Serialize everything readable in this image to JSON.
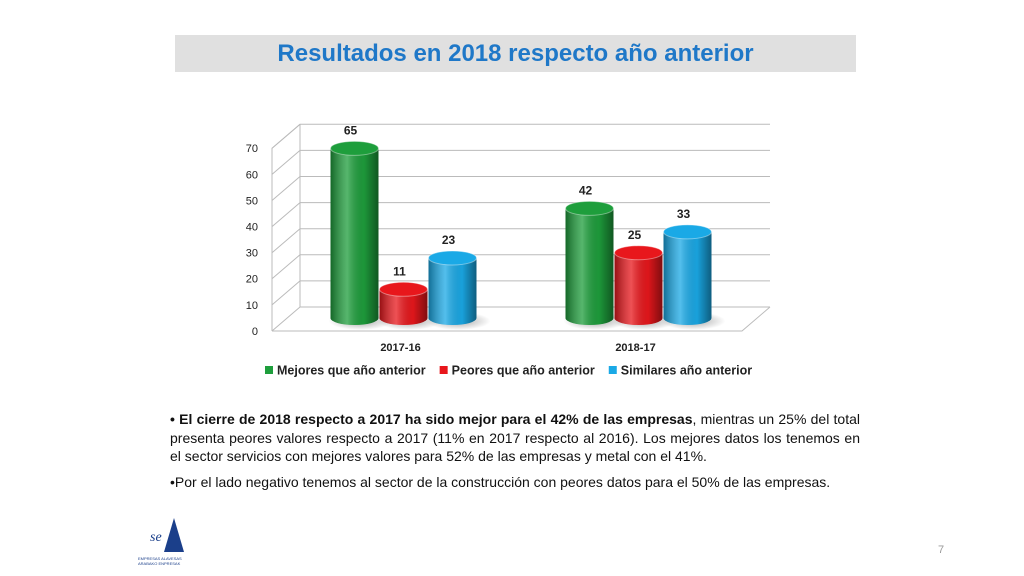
{
  "chart_data": {
    "type": "cylinder-bar",
    "title": "Resultados en 2018 respecto año anterior",
    "categories": [
      "2017-16",
      "2018-17"
    ],
    "series": [
      {
        "name": "Mejores que año anterior",
        "color": "#1e9e3c",
        "values": [
          65,
          42
        ]
      },
      {
        "name": "Peores que año anterior",
        "color": "#e8171c",
        "values": [
          11,
          25
        ]
      },
      {
        "name": "Similares año anterior",
        "color": "#1aa9e6",
        "values": [
          23,
          33
        ]
      }
    ],
    "ylim": [
      0,
      70
    ],
    "yticks": [
      0,
      10,
      20,
      30,
      40,
      50,
      60,
      70
    ],
    "grid": true,
    "legend": "bottom"
  },
  "text": {
    "bullets": [
      {
        "bold": "• El cierre de 2018 respecto a 2017 ha sido mejor para el 42% de las empresas",
        "text": ", mientras un 25% del total presenta peores valores respecto a 2017 (11% en 2017 respecto al 2016). Los mejores datos los tenemos en el sector servicios con mejores valores para 52% de las empresas y metal con el 41%."
      },
      {
        "bold": "",
        "text": "•Por el lado negativo tenemos al sector de la construcción con peores datos para el 50% de las empresas."
      }
    ]
  },
  "logo": {
    "mark": "se",
    "lines": [
      "EMPRESAS ALAVESAS",
      "ARABAKO ENPRESAK"
    ]
  },
  "page_number": "7"
}
